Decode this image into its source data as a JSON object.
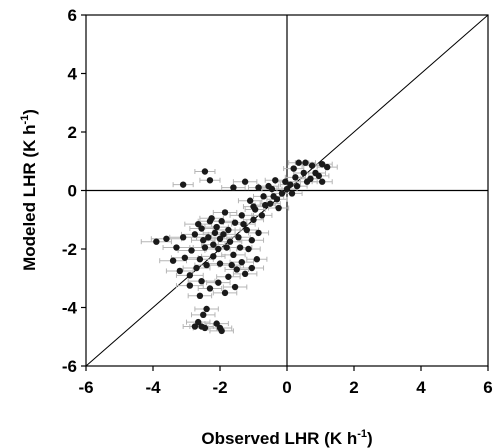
{
  "chart_data": {
    "type": "scatter",
    "xlabel": "Observed LHR (K h",
    "ylabel": "Modeled LHR (K h",
    "unit_superscript": "-1",
    "unit_close": ")",
    "xlim": [
      -6,
      6
    ],
    "ylim": [
      -6,
      6
    ],
    "x_ticks": [
      -6,
      -4,
      -2,
      0,
      2,
      4,
      6
    ],
    "y_ticks": [
      -6,
      -4,
      -2,
      0,
      2,
      4,
      6
    ],
    "x_tick_labels": [
      "-6",
      "-4",
      "-2",
      "0",
      "2",
      "4",
      "6"
    ],
    "y_tick_labels": [
      "-6",
      "-4",
      "-2",
      "0",
      "2",
      "4",
      "6"
    ],
    "reference_line": "1:1",
    "zero_lines": true,
    "grid": false,
    "colors": {
      "points": "#1a1a1a",
      "error_bars": "#b5b5b5",
      "lines": "#000000"
    },
    "points": [
      [
        -3.1,
        0.2,
        0.3
      ],
      [
        -2.45,
        0.65,
        0.3
      ],
      [
        -2.3,
        0.35,
        0.3
      ],
      [
        -1.6,
        0.1,
        0.35
      ],
      [
        -1.25,
        0.3,
        0.35
      ],
      [
        -0.85,
        0.1,
        0.3
      ],
      [
        -0.7,
        -0.2,
        0.3
      ],
      [
        -1.1,
        -0.35,
        0.35
      ],
      [
        -0.5,
        -0.45,
        0.3
      ],
      [
        -0.3,
        -0.3,
        0.3
      ],
      [
        -0.15,
        -0.1,
        0.3
      ],
      [
        0.0,
        0.05,
        0.3
      ],
      [
        0.1,
        0.2,
        0.3
      ],
      [
        0.25,
        0.45,
        0.3
      ],
      [
        0.2,
        0.75,
        0.3
      ],
      [
        0.35,
        0.95,
        0.3
      ],
      [
        0.5,
        0.6,
        0.3
      ],
      [
        0.6,
        0.3,
        0.3
      ],
      [
        0.75,
        0.85,
        0.3
      ],
      [
        0.85,
        0.6,
        0.3
      ],
      [
        0.95,
        0.5,
        0.3
      ],
      [
        1.05,
        0.9,
        0.3
      ],
      [
        1.2,
        0.8,
        0.3
      ],
      [
        1.05,
        0.3,
        0.3
      ],
      [
        0.15,
        -0.1,
        0.3
      ],
      [
        -0.35,
        0.35,
        0.3
      ],
      [
        -0.55,
        0.15,
        0.3
      ],
      [
        -0.4,
        -0.2,
        0.3
      ],
      [
        -0.65,
        -0.5,
        0.3
      ],
      [
        -0.95,
        -0.65,
        0.3
      ],
      [
        -0.75,
        -0.85,
        0.3
      ],
      [
        -1.0,
        -1.0,
        0.3
      ],
      [
        -1.35,
        -0.85,
        0.35
      ],
      [
        -1.55,
        -1.1,
        0.35
      ],
      [
        -1.2,
        -1.35,
        0.35
      ],
      [
        -0.85,
        -1.45,
        0.3
      ],
      [
        -1.45,
        -1.6,
        0.35
      ],
      [
        -1.75,
        -1.35,
        0.35
      ],
      [
        -1.9,
        -1.5,
        0.35
      ],
      [
        -2.1,
        -1.25,
        0.35
      ],
      [
        -2.3,
        -1.05,
        0.35
      ],
      [
        -2.55,
        -1.3,
        0.35
      ],
      [
        -2.75,
        -1.5,
        0.4
      ],
      [
        -2.5,
        -1.7,
        0.35
      ],
      [
        -2.2,
        -1.85,
        0.35
      ],
      [
        -2.0,
        -1.65,
        0.35
      ],
      [
        -1.8,
        -1.95,
        0.35
      ],
      [
        -1.6,
        -2.2,
        0.35
      ],
      [
        -1.35,
        -2.45,
        0.35
      ],
      [
        -1.15,
        -2.0,
        0.35
      ],
      [
        -1.05,
        -1.7,
        0.35
      ],
      [
        -0.9,
        -2.35,
        0.3
      ],
      [
        -1.5,
        -2.7,
        0.35
      ],
      [
        -1.75,
        -2.95,
        0.35
      ],
      [
        -2.0,
        -2.5,
        0.35
      ],
      [
        -2.2,
        -2.25,
        0.35
      ],
      [
        -2.4,
        -2.55,
        0.35
      ],
      [
        -2.6,
        -2.35,
        0.4
      ],
      [
        -2.85,
        -2.05,
        0.4
      ],
      [
        -3.05,
        -2.3,
        0.4
      ],
      [
        -3.3,
        -1.95,
        0.4
      ],
      [
        -3.6,
        -1.65,
        0.45
      ],
      [
        -3.9,
        -1.75,
        0.45
      ],
      [
        -3.2,
        -2.75,
        0.4
      ],
      [
        -2.9,
        -2.9,
        0.4
      ],
      [
        -2.55,
        -3.1,
        0.4
      ],
      [
        -2.3,
        -3.35,
        0.35
      ],
      [
        -2.05,
        -3.15,
        0.35
      ],
      [
        -1.85,
        -3.5,
        0.35
      ],
      [
        -1.55,
        -3.3,
        0.35
      ],
      [
        -2.6,
        -3.6,
        0.35
      ],
      [
        -2.4,
        -4.05,
        0.35
      ],
      [
        -2.5,
        -4.25,
        0.35
      ],
      [
        -2.65,
        -4.5,
        0.35
      ],
      [
        -2.55,
        -4.65,
        0.35
      ],
      [
        -2.45,
        -4.7,
        0.35
      ],
      [
        -2.1,
        -4.55,
        0.35
      ],
      [
        -2.0,
        -4.7,
        0.35
      ],
      [
        -1.95,
        -4.8,
        0.35
      ],
      [
        -2.75,
        -4.65,
        0.35
      ],
      [
        -2.15,
        -1.45,
        0.35
      ],
      [
        -2.35,
        -1.6,
        0.35
      ],
      [
        -1.95,
        -1.05,
        0.35
      ],
      [
        -1.7,
        -1.75,
        0.35
      ],
      [
        -2.45,
        -1.95,
        0.35
      ],
      [
        -2.7,
        -2.65,
        0.4
      ],
      [
        -3.4,
        -2.4,
        0.4
      ],
      [
        -1.4,
        -1.95,
        0.35
      ],
      [
        -1.25,
        -2.85,
        0.35
      ],
      [
        -2.9,
        -3.25,
        0.4
      ],
      [
        -3.1,
        -1.6,
        0.4
      ],
      [
        -2.05,
        -2.0,
        0.35
      ],
      [
        -1.65,
        -2.55,
        0.35
      ],
      [
        -1.0,
        -0.55,
        0.3
      ],
      [
        -0.45,
        0.05,
        0.3
      ],
      [
        0.3,
        0.15,
        0.3
      ],
      [
        0.55,
        0.95,
        0.3
      ],
      [
        0.7,
        0.4,
        0.3
      ],
      [
        -0.05,
        0.3,
        0.3
      ],
      [
        -0.25,
        -0.6,
        0.3
      ],
      [
        -1.85,
        -0.75,
        0.35
      ],
      [
        -2.25,
        -0.95,
        0.35
      ],
      [
        -2.65,
        -1.15,
        0.4
      ],
      [
        -1.3,
        -1.15,
        0.35
      ],
      [
        -1.05,
        -2.65,
        0.35
      ]
    ]
  }
}
